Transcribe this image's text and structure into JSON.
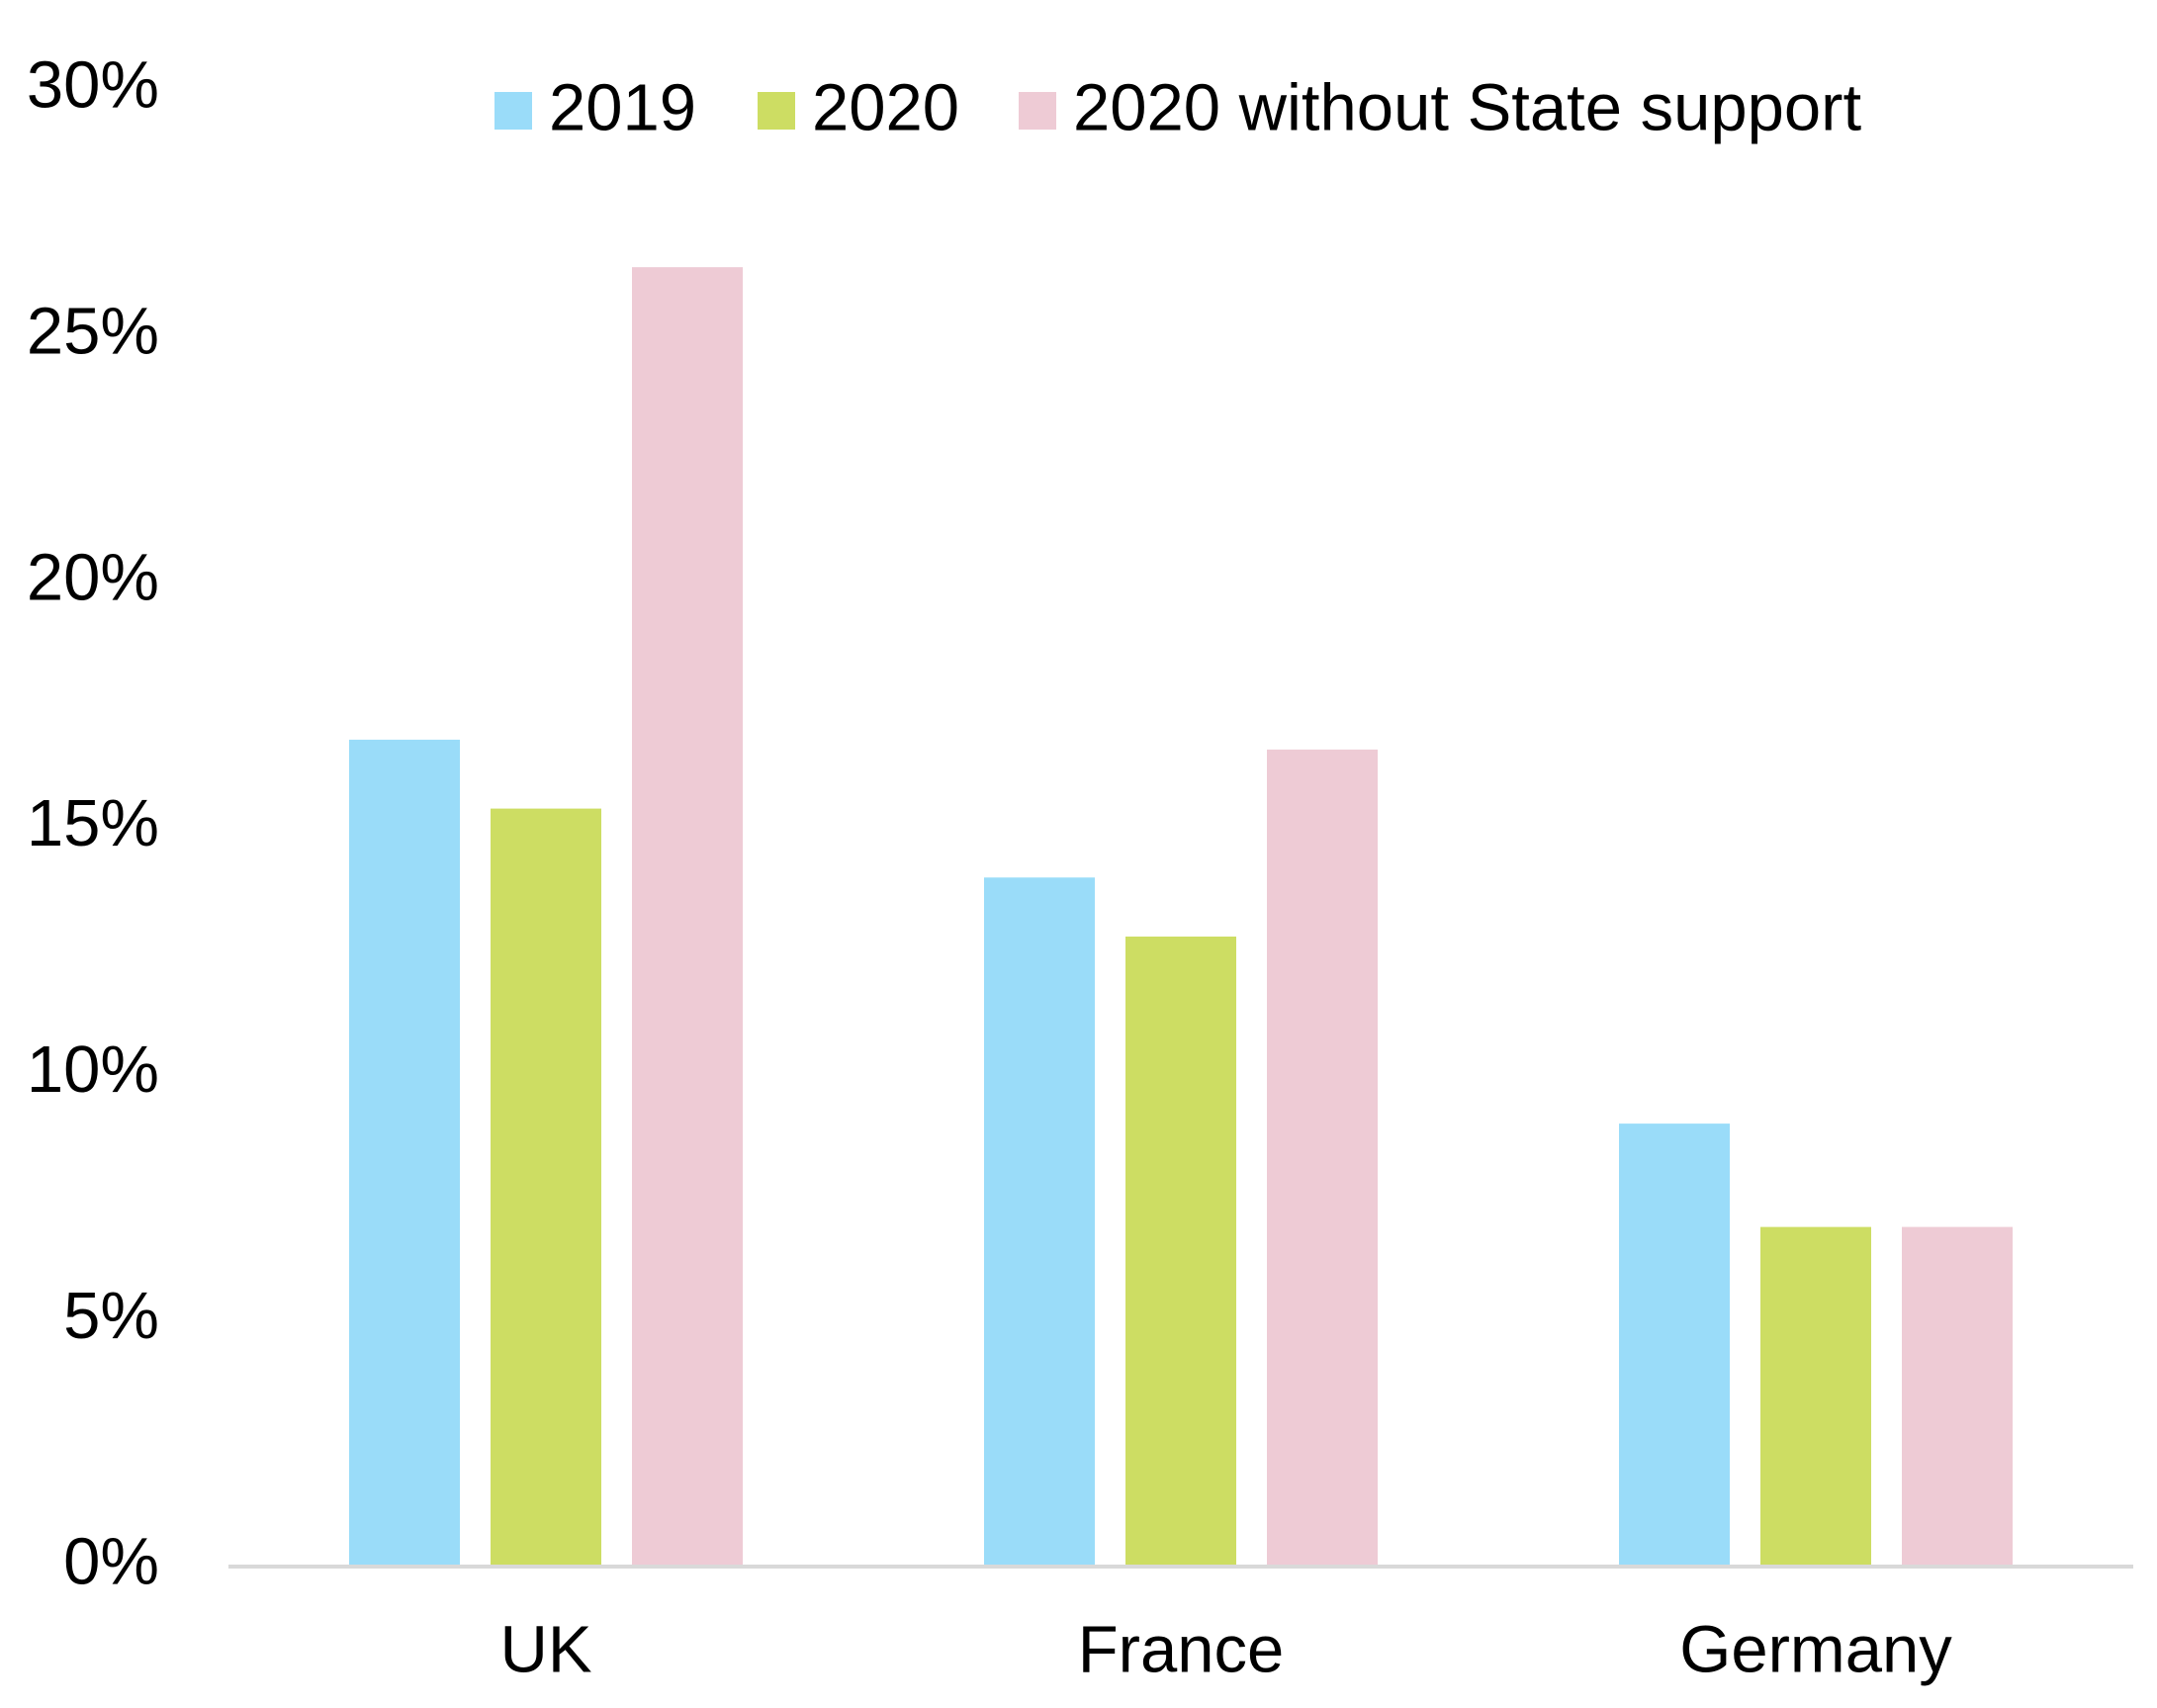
{
  "chart_data": {
    "type": "bar",
    "categories": [
      "UK",
      "France",
      "Germany"
    ],
    "series": [
      {
        "name": "2019",
        "color": "#9adcf9",
        "values": [
          16.8,
          14.0,
          9.0
        ]
      },
      {
        "name": "2020",
        "color": "#cddd63",
        "values": [
          15.4,
          12.8,
          6.9
        ]
      },
      {
        "name": "2020 without State support",
        "color": "#eecbd5",
        "values": [
          26.4,
          16.6,
          6.9
        ]
      }
    ],
    "ylim": [
      0,
      30
    ],
    "yticks": [
      {
        "value": 0,
        "label": "0%"
      },
      {
        "value": 5,
        "label": "5%"
      },
      {
        "value": 10,
        "label": "10%"
      },
      {
        "value": 15,
        "label": "15%"
      },
      {
        "value": 20,
        "label": "20%"
      },
      {
        "value": 25,
        "label": "25%"
      },
      {
        "value": 30,
        "label": "30%"
      }
    ],
    "grid": false,
    "legend": "top"
  }
}
